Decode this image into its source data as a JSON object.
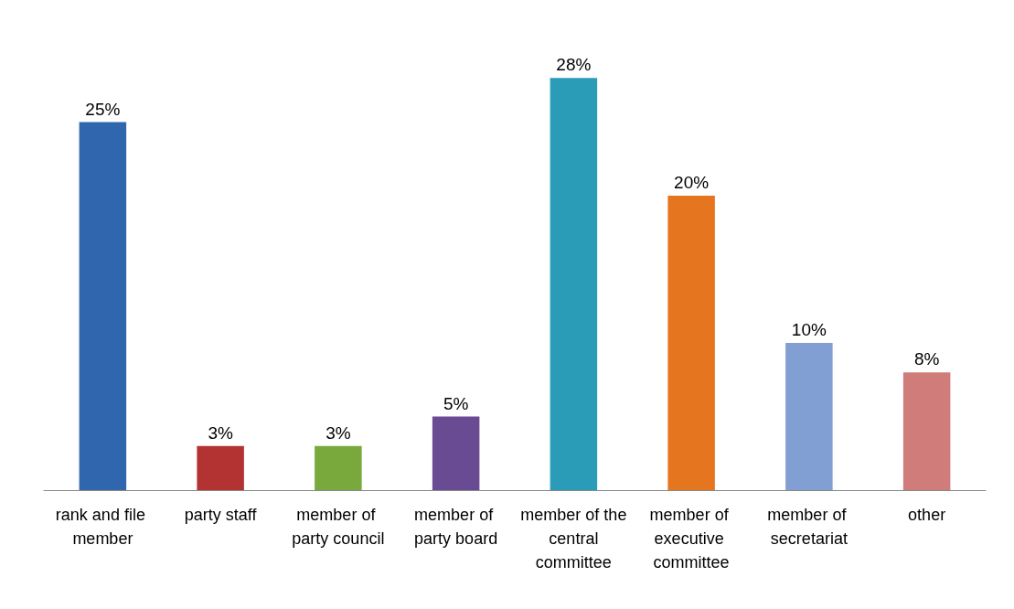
{
  "chart_data": {
    "type": "bar",
    "categories": [
      "rank and file member",
      "party staff",
      "member of party council",
      "member of party board",
      "member of the central committee",
      "member of executive committee",
      "member of secretariat",
      "other"
    ],
    "values": [
      25,
      3,
      3,
      5,
      28,
      20,
      10,
      8
    ],
    "value_labels": [
      "25%",
      "3%",
      "3%",
      "5%",
      "28%",
      "20%",
      "10%",
      "8%"
    ],
    "colors": [
      "#2f66ae",
      "#b33232",
      "#79a83c",
      "#694b93",
      "#2b9cb8",
      "#e5761f",
      "#819fd2",
      "#cf7c7b"
    ]
  }
}
